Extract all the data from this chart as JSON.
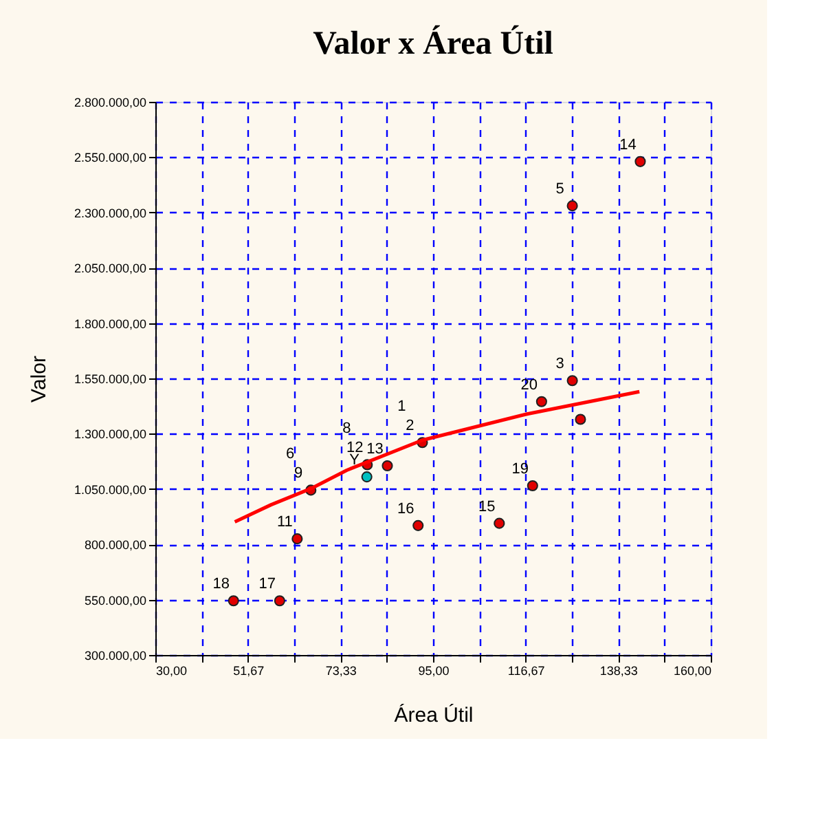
{
  "chart_data": {
    "type": "scatter",
    "title": "Valor x Área Útil",
    "xlabel": "Área Útil",
    "ylabel": "Valor",
    "xlim": [
      30,
      160
    ],
    "ylim": [
      300000,
      2800000
    ],
    "xticks": [
      {
        "value": 30,
        "label": "30,00"
      },
      {
        "value": 40.83,
        "label": null
      },
      {
        "value": 51.67,
        "label": "51,67"
      },
      {
        "value": 62.5,
        "label": null
      },
      {
        "value": 73.33,
        "label": "73,33"
      },
      {
        "value": 84.17,
        "label": null
      },
      {
        "value": 95,
        "label": "95,00"
      },
      {
        "value": 105.83,
        "label": null
      },
      {
        "value": 116.67,
        "label": "116,67"
      },
      {
        "value": 127.5,
        "label": null
      },
      {
        "value": 138.33,
        "label": "138,33"
      },
      {
        "value": 149.17,
        "label": null
      },
      {
        "value": 160,
        "label": "160,00"
      }
    ],
    "yticks": [
      {
        "value": 300000,
        "label": "300.000,00"
      },
      {
        "value": 550000,
        "label": "550.000,00"
      },
      {
        "value": 800000,
        "label": "800.000,00"
      },
      {
        "value": 1050000,
        "label": "1.050.000,00"
      },
      {
        "value": 1300000,
        "label": "1.300.000,00"
      },
      {
        "value": 1550000,
        "label": "1.550.000,00"
      },
      {
        "value": 1800000,
        "label": "1.800.000,00"
      },
      {
        "value": 2050000,
        "label": "2.050.000,00"
      },
      {
        "value": 2300000,
        "label": "2.300.000,00"
      },
      {
        "value": 2550000,
        "label": "2.550.000,00"
      },
      {
        "value": 2800000,
        "label": "2.800.000,00"
      }
    ],
    "grid": true,
    "marker": "circle",
    "series": [
      {
        "color": "#e00000",
        "x": [
          48.3,
          59.1,
          63.2,
          66.4,
          79.6,
          84.3,
          91.5,
          92.5,
          110.5,
          118.3,
          120.4,
          127.6,
          127.6,
          129.5,
          143.5
        ],
        "values": [
          545000,
          545000,
          825000,
          1045000,
          1160000,
          1155000,
          885000,
          1260000,
          895000,
          1065000,
          1445000,
          1540000,
          2330000,
          1365000,
          2530000
        ]
      },
      {
        "color": "#00c0c0",
        "x": [
          79.5
        ],
        "values": [
          1105000
        ]
      },
      {
        "type": "line",
        "marker": "none",
        "color": "#ff0000",
        "x": [
          48.6,
          57.1,
          66.4,
          74.8,
          92.5,
          117.2,
          143.3
        ],
        "values": [
          902000,
          979000,
          1052000,
          1135000,
          1271000,
          1390000,
          1490000
        ]
      }
    ],
    "annotations": [
      {
        "text": "18",
        "x": 48.3,
        "y": 545000
      },
      {
        "text": "17",
        "x": 59.1,
        "y": 545000
      },
      {
        "text": "11",
        "x": 63.2,
        "y": 825000
      },
      {
        "text": "9",
        "x": 66.4,
        "y": 1045000
      },
      {
        "text": "6",
        "x": 66.4,
        "y": 1045000
      },
      {
        "text": "12",
        "x": 79.6,
        "y": 1160000
      },
      {
        "text": "8",
        "x": 79.6,
        "y": 1160000
      },
      {
        "text": "13",
        "x": 84.3,
        "y": 1155000
      },
      {
        "text": "16",
        "x": 91.5,
        "y": 885000
      },
      {
        "text": "2",
        "x": 92.5,
        "y": 1260000
      },
      {
        "text": "1",
        "x": 92.5,
        "y": 1260000
      },
      {
        "text": "15",
        "x": 110.5,
        "y": 895000
      },
      {
        "text": "19",
        "x": 118.3,
        "y": 1065000
      },
      {
        "text": "20",
        "x": 120.4,
        "y": 1445000
      },
      {
        "text": "3",
        "x": 127.6,
        "y": 1540000
      },
      {
        "text": "5",
        "x": 127.6,
        "y": 2330000
      },
      {
        "text": "14",
        "x": 143.5,
        "y": 2530000
      },
      {
        "text": "Y",
        "x": 79.5,
        "y": 1105000
      }
    ]
  }
}
